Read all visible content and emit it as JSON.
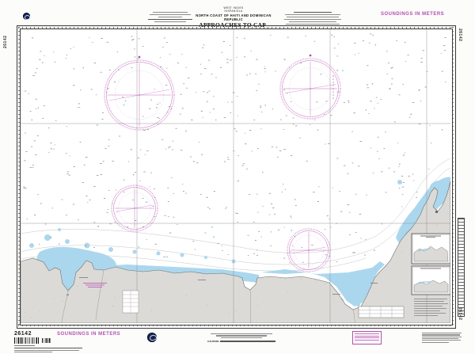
{
  "chart": {
    "number": "26142",
    "region_line1": "WEST INDIES",
    "region_line2": "HISPANIOLA",
    "area_line": "NORTH COAST OF HAITI AND DOMINICAN REPUBLIC",
    "title_line1": "APPROACHES TO CAP-HAÏTIEN",
    "title_line2": "AND BAHÍA DE MONTE CRISTI",
    "soundings_note": "SOUNDINGS IN METERS",
    "caution_label": "CAUTION:"
  },
  "colors": {
    "magenta": "#b44fb0",
    "shallow_water": "#abd7ee",
    "land": "#dbdad6",
    "border_ink": "#3a3a3a"
  }
}
